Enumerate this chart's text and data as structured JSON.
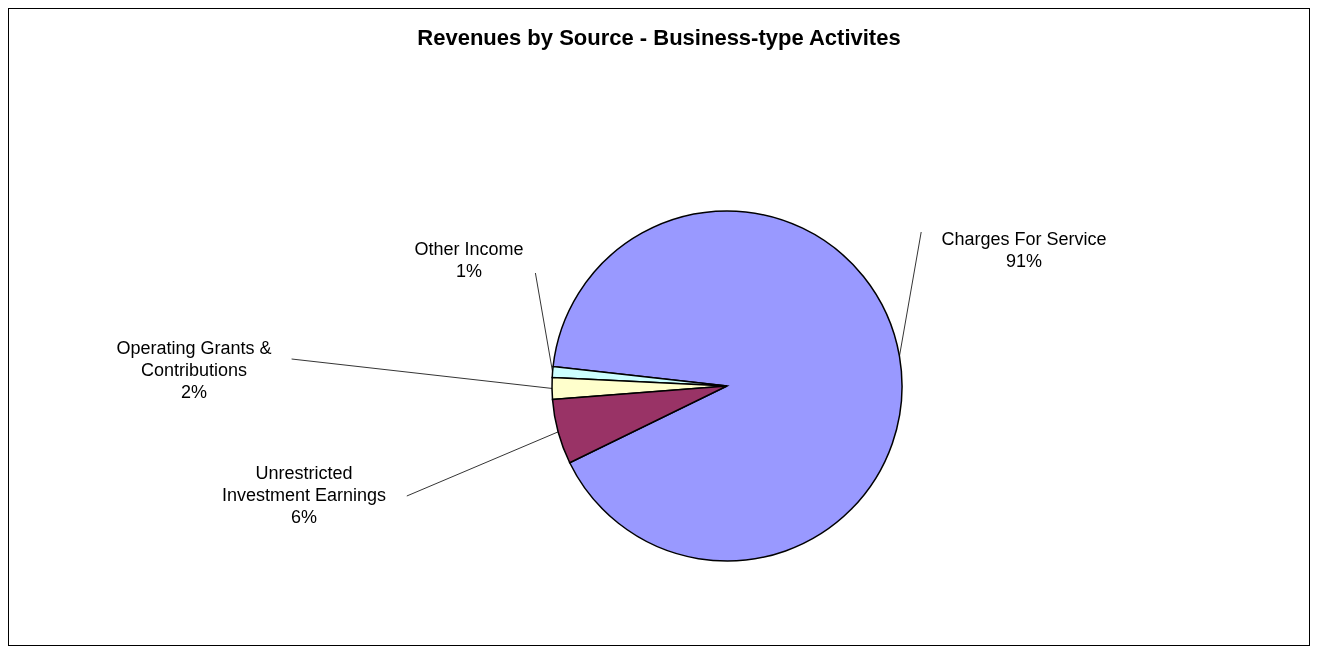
{
  "chart_data": {
    "type": "pie",
    "title": "Revenues by Source - Business-type Activites",
    "categories": [
      "Charges For Service",
      "Other Income",
      "Operating Grants & Contributions",
      "Unrestricted Investment Earnings"
    ],
    "values": [
      91,
      1,
      2,
      6
    ],
    "colors": [
      "#9999ff",
      "#ccffff",
      "#ffffcc",
      "#993366"
    ],
    "value_labels": [
      "91%",
      "1%",
      "2%",
      "6%"
    ],
    "legend": false
  }
}
